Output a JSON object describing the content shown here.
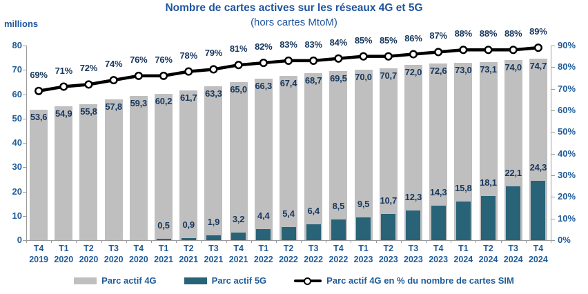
{
  "title": "Nombre de cartes actives sur les réseaux 4G et 5G",
  "subtitle": "(hors cartes MtoM)",
  "colors": {
    "title_text": "#1F549E",
    "axis_text": "#1F5C99",
    "data_label": "#17375E",
    "bar_4g": "#BFBFBF",
    "bar_5g": "#296378",
    "line": "#000000",
    "marker_fill": "#FFFFFF",
    "axis_line": "#9B9B9B"
  },
  "chart_data": {
    "type": "bar",
    "subtype": "combo-bar-line-dual-axis",
    "title": "Nombre de cartes actives sur les réseaux 4G et 5G",
    "subtitle": "(hors cartes MtoM)",
    "grid": false,
    "legend_position": "bottom",
    "categories": [
      "T4 2019",
      "T1 2020",
      "T2 2020",
      "T3 2020",
      "T4 2020",
      "T1 2021",
      "T2 2021",
      "T3 2021",
      "T4 2021",
      "T1 2022",
      "T2 2022",
      "T3 2022",
      "T4 2022",
      "T1 2023",
      "T2 2023",
      "T3 2023",
      "T4 2023",
      "T1 2024",
      "T2 2024",
      "T3 2024",
      "T4 2024"
    ],
    "series": [
      {
        "name": "Parc actif 4G",
        "type": "bar",
        "axis": "left",
        "color": "#BFBFBF",
        "values": [
          53.6,
          54.9,
          55.8,
          57.8,
          59.3,
          60.2,
          61.7,
          63.3,
          65.0,
          66.3,
          67.4,
          68.7,
          69.5,
          70.0,
          70.7,
          72.0,
          72.6,
          73.0,
          73.1,
          74.0,
          74.7
        ]
      },
      {
        "name": "Parc actif 5G",
        "type": "bar",
        "axis": "left",
        "color": "#296378",
        "values": [
          null,
          null,
          null,
          null,
          null,
          0.5,
          0.9,
          1.9,
          3.2,
          4.4,
          5.4,
          6.4,
          8.5,
          9.5,
          10.7,
          12.3,
          14.3,
          15.8,
          18.1,
          22.1,
          24.3
        ]
      },
      {
        "name": "Parc actif 4G en % du nombre de cartes SIM",
        "type": "line",
        "axis": "right",
        "color": "#000000",
        "values": [
          69,
          71,
          72,
          74,
          76,
          76,
          78,
          79,
          81,
          82,
          83,
          83,
          84,
          85,
          85,
          86,
          87,
          88,
          88,
          88,
          89
        ]
      }
    ],
    "left_axis": {
      "label": "millions",
      "min": 0,
      "max": 80,
      "step": 10
    },
    "right_axis": {
      "min": 0,
      "max": 90,
      "step": 10,
      "suffix": "%"
    }
  }
}
